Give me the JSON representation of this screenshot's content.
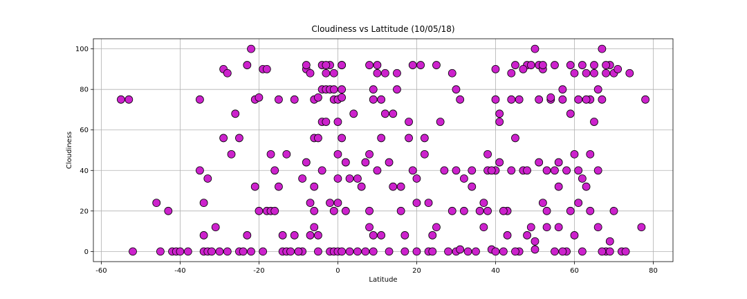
{
  "chart_data": {
    "type": "scatter",
    "title": "Cloudiness vs Lattitude (10/05/18)",
    "xlabel": "Latitude",
    "ylabel": "Cloudiness",
    "xlim": [
      -62,
      85
    ],
    "ylim": [
      -5,
      105
    ],
    "xticks": [
      -60,
      -40,
      -20,
      0,
      20,
      40,
      60,
      80
    ],
    "yticks": [
      0,
      20,
      40,
      60,
      80,
      100
    ],
    "grid": true,
    "marker_color": "#cc22cc",
    "edge_color": "#000000",
    "points": [
      [
        -55,
        75
      ],
      [
        -53,
        75
      ],
      [
        -52,
        0
      ],
      [
        -46,
        24
      ],
      [
        -45,
        0
      ],
      [
        -43,
        20
      ],
      [
        -42,
        0
      ],
      [
        -41,
        0
      ],
      [
        -40,
        0
      ],
      [
        -38,
        0
      ],
      [
        -35,
        75
      ],
      [
        -35,
        40
      ],
      [
        -34,
        8
      ],
      [
        -34,
        24
      ],
      [
        -34,
        0
      ],
      [
        -33,
        36
      ],
      [
        -33,
        0
      ],
      [
        -32,
        0
      ],
      [
        -31,
        12
      ],
      [
        -30,
        0
      ],
      [
        -29,
        56
      ],
      [
        -29,
        90
      ],
      [
        -28,
        88
      ],
      [
        -28,
        0
      ],
      [
        -27,
        48
      ],
      [
        -26,
        68
      ],
      [
        -25,
        56
      ],
      [
        -25,
        0
      ],
      [
        -24,
        0
      ],
      [
        -23,
        8
      ],
      [
        -23,
        92
      ],
      [
        -22,
        100
      ],
      [
        -22,
        0
      ],
      [
        -21,
        32
      ],
      [
        -21,
        75
      ],
      [
        -20,
        76
      ],
      [
        -20,
        20
      ],
      [
        -19,
        0
      ],
      [
        -19,
        90
      ],
      [
        -18,
        90
      ],
      [
        -18,
        20
      ],
      [
        -17,
        48
      ],
      [
        -17,
        20
      ],
      [
        -16,
        20
      ],
      [
        -16,
        40
      ],
      [
        -15,
        32
      ],
      [
        -15,
        75
      ],
      [
        -14,
        0
      ],
      [
        -14,
        8
      ],
      [
        -13,
        48
      ],
      [
        -13,
        0
      ],
      [
        -12,
        0
      ],
      [
        -11,
        75
      ],
      [
        -11,
        8
      ],
      [
        -10,
        0
      ],
      [
        -9,
        36
      ],
      [
        -8,
        90
      ],
      [
        -8,
        92
      ],
      [
        -7,
        88
      ],
      [
        -7,
        8
      ],
      [
        -6,
        12
      ],
      [
        -6,
        32
      ],
      [
        -5,
        0
      ],
      [
        -4,
        40
      ],
      [
        -3,
        88
      ],
      [
        -2,
        92
      ],
      [
        -1,
        88
      ],
      [
        -1,
        75
      ],
      [
        0,
        75
      ],
      [
        0,
        24
      ],
      [
        -6,
        75
      ],
      [
        -5,
        76
      ],
      [
        -4,
        92
      ],
      [
        -3,
        92
      ],
      [
        -2,
        0
      ],
      [
        -1,
        0
      ],
      [
        0,
        0
      ],
      [
        -9,
        0
      ],
      [
        -10,
        0
      ],
      [
        -8,
        44
      ],
      [
        -7,
        24
      ],
      [
        -6,
        56
      ],
      [
        -5,
        56
      ],
      [
        -4,
        80
      ],
      [
        -3,
        80
      ],
      [
        -2,
        80
      ],
      [
        -1,
        80
      ],
      [
        0,
        64
      ],
      [
        -6,
        20
      ],
      [
        -5,
        8
      ],
      [
        -4,
        64
      ],
      [
        -3,
        64
      ],
      [
        -2,
        24
      ],
      [
        -1,
        20
      ],
      [
        0,
        48
      ],
      [
        0,
        36
      ],
      [
        1,
        92
      ],
      [
        1,
        92
      ],
      [
        1,
        80
      ],
      [
        1,
        76
      ],
      [
        1,
        0
      ],
      [
        1,
        56
      ],
      [
        2,
        44
      ],
      [
        2,
        20
      ],
      [
        3,
        36
      ],
      [
        3,
        0
      ],
      [
        4,
        68
      ],
      [
        5,
        36
      ],
      [
        5,
        0
      ],
      [
        6,
        32
      ],
      [
        7,
        44
      ],
      [
        7,
        0
      ],
      [
        8,
        92
      ],
      [
        8,
        48
      ],
      [
        8,
        20
      ],
      [
        8,
        12
      ],
      [
        9,
        80
      ],
      [
        9,
        75
      ],
      [
        9,
        8
      ],
      [
        9,
        0
      ],
      [
        10,
        88
      ],
      [
        10,
        92
      ],
      [
        10,
        40
      ],
      [
        11,
        75
      ],
      [
        11,
        56
      ],
      [
        11,
        8
      ],
      [
        12,
        68
      ],
      [
        12,
        88
      ],
      [
        13,
        44
      ],
      [
        13,
        0
      ],
      [
        14,
        68
      ],
      [
        14,
        32
      ],
      [
        15,
        88
      ],
      [
        15,
        80
      ],
      [
        16,
        32
      ],
      [
        16,
        20
      ],
      [
        17,
        0
      ],
      [
        17,
        8
      ],
      [
        18,
        56
      ],
      [
        18,
        64
      ],
      [
        19,
        92
      ],
      [
        19,
        40
      ],
      [
        20,
        24
      ],
      [
        20,
        36
      ],
      [
        20,
        0
      ],
      [
        21,
        92
      ],
      [
        22,
        56
      ],
      [
        22,
        48
      ],
      [
        23,
        24
      ],
      [
        23,
        0
      ],
      [
        24,
        0
      ],
      [
        24,
        8
      ],
      [
        25,
        92
      ],
      [
        25,
        12
      ],
      [
        26,
        64
      ],
      [
        27,
        40
      ],
      [
        28,
        0
      ],
      [
        29,
        88
      ],
      [
        29,
        20
      ],
      [
        30,
        80
      ],
      [
        30,
        40
      ],
      [
        30,
        0
      ],
      [
        31,
        75
      ],
      [
        31,
        1
      ],
      [
        32,
        36
      ],
      [
        32,
        20
      ],
      [
        33,
        0
      ],
      [
        34,
        40
      ],
      [
        34,
        32
      ],
      [
        35,
        0
      ],
      [
        36,
        20
      ],
      [
        37,
        12
      ],
      [
        37,
        24
      ],
      [
        38,
        48
      ],
      [
        38,
        20
      ],
      [
        39,
        1
      ],
      [
        40,
        0
      ],
      [
        40,
        40
      ],
      [
        41,
        64
      ],
      [
        41,
        44
      ],
      [
        42,
        0
      ],
      [
        43,
        20
      ],
      [
        44,
        88
      ],
      [
        44,
        75
      ],
      [
        45,
        92
      ],
      [
        45,
        56
      ],
      [
        46,
        0
      ],
      [
        47,
        40
      ],
      [
        48,
        92
      ],
      [
        48,
        40
      ],
      [
        49,
        92
      ],
      [
        50,
        100
      ],
      [
        50,
        5
      ],
      [
        50,
        1
      ],
      [
        51,
        75
      ],
      [
        51,
        92
      ],
      [
        52,
        90
      ],
      [
        52,
        92
      ],
      [
        53,
        20
      ],
      [
        53,
        40
      ],
      [
        54,
        75
      ],
      [
        54,
        76
      ],
      [
        55,
        0
      ],
      [
        55,
        92
      ],
      [
        56,
        32
      ],
      [
        56,
        44
      ],
      [
        57,
        75
      ],
      [
        57,
        80
      ],
      [
        58,
        0
      ],
      [
        58,
        40
      ],
      [
        59,
        92
      ],
      [
        59,
        20
      ],
      [
        60,
        88
      ],
      [
        60,
        8
      ],
      [
        61,
        75
      ],
      [
        61,
        24
      ],
      [
        62,
        92
      ],
      [
        62,
        0
      ],
      [
        63,
        88
      ],
      [
        63,
        32
      ],
      [
        64,
        75
      ],
      [
        64,
        48
      ],
      [
        65,
        92
      ],
      [
        65,
        64
      ],
      [
        66,
        80
      ],
      [
        66,
        12
      ],
      [
        67,
        100
      ],
      [
        67,
        75
      ],
      [
        68,
        88
      ],
      [
        68,
        0
      ],
      [
        69,
        92
      ],
      [
        69,
        5
      ],
      [
        70,
        88
      ],
      [
        70,
        20
      ],
      [
        71,
        90
      ],
      [
        72,
        0
      ],
      [
        73,
        0
      ],
      [
        74,
        88
      ],
      [
        77,
        12
      ],
      [
        78,
        75
      ],
      [
        38,
        40
      ],
      [
        39,
        40
      ],
      [
        40,
        75
      ],
      [
        40,
        90
      ],
      [
        41,
        68
      ],
      [
        42,
        20
      ],
      [
        43,
        8
      ],
      [
        44,
        40
      ],
      [
        45,
        0
      ],
      [
        46,
        75
      ],
      [
        47,
        90
      ],
      [
        48,
        8
      ],
      [
        49,
        12
      ],
      [
        51,
        44
      ],
      [
        52,
        24
      ],
      [
        53,
        12
      ],
      [
        55,
        40
      ],
      [
        56,
        12
      ],
      [
        57,
        0
      ],
      [
        59,
        68
      ],
      [
        60,
        48
      ],
      [
        61,
        40
      ],
      [
        62,
        36
      ],
      [
        63,
        75
      ],
      [
        64,
        20
      ],
      [
        65,
        88
      ],
      [
        66,
        40
      ],
      [
        67,
        0
      ],
      [
        68,
        92
      ],
      [
        69,
        0
      ]
    ]
  }
}
